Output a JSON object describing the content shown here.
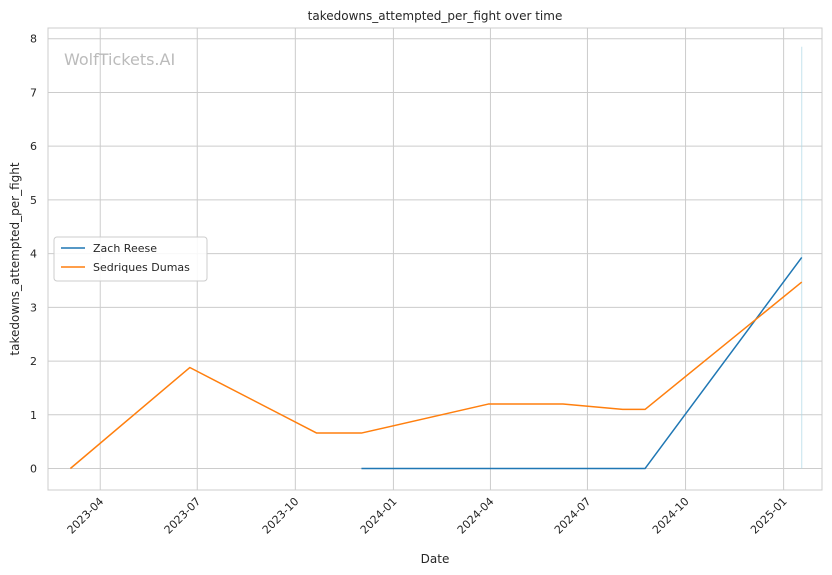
{
  "chart_data": {
    "type": "line",
    "title": "takedowns_attempted_per_fight over time",
    "xlabel": "Date",
    "ylabel": "takedowns_attempted_per_fight",
    "watermark": "WolfTickets.AI",
    "xlim": [
      "2023-02-11",
      "2025-02-06"
    ],
    "ylim": [
      -0.4,
      8.2
    ],
    "x_ticks": [
      "2023-04-01",
      "2023-07-01",
      "2023-10-01",
      "2024-01-01",
      "2024-04-01",
      "2024-07-01",
      "2024-10-01",
      "2025-01-01"
    ],
    "x_tick_labels": [
      "2023-04",
      "2023-07",
      "2023-10",
      "2024-01",
      "2024-04",
      "2024-07",
      "2024-10",
      "2025-01"
    ],
    "y_ticks": [
      0,
      1,
      2,
      3,
      4,
      5,
      6,
      7,
      8
    ],
    "grid": true,
    "legend_position": "center-left",
    "series": [
      {
        "name": "Zach Reese",
        "color": "#1f77b4",
        "points": [
          {
            "x": "2023-12-02",
            "y": 0
          },
          {
            "x": "2024-03-30",
            "y": 0
          },
          {
            "x": "2024-06-08",
            "y": 0
          },
          {
            "x": "2024-08-24",
            "y": 0
          },
          {
            "x": "2025-01-18",
            "y": 3.93
          }
        ]
      },
      {
        "name": "Sedriques Dumas",
        "color": "#ff7f0e",
        "points": [
          {
            "x": "2023-03-04",
            "y": 0
          },
          {
            "x": "2023-06-24",
            "y": 1.88
          },
          {
            "x": "2023-10-21",
            "y": 0.66
          },
          {
            "x": "2023-12-02",
            "y": 0.66
          },
          {
            "x": "2024-03-30",
            "y": 1.2
          },
          {
            "x": "2024-06-08",
            "y": 1.2
          },
          {
            "x": "2024-08-03",
            "y": 1.1
          },
          {
            "x": "2024-08-24",
            "y": 1.1
          },
          {
            "x": "2025-01-18",
            "y": 3.47
          }
        ]
      }
    ],
    "annotations": [
      {
        "type": "vertical-line",
        "x": "2025-01-18",
        "y_from": 0,
        "y_to": 7.85,
        "color": "#add8e6"
      }
    ]
  }
}
